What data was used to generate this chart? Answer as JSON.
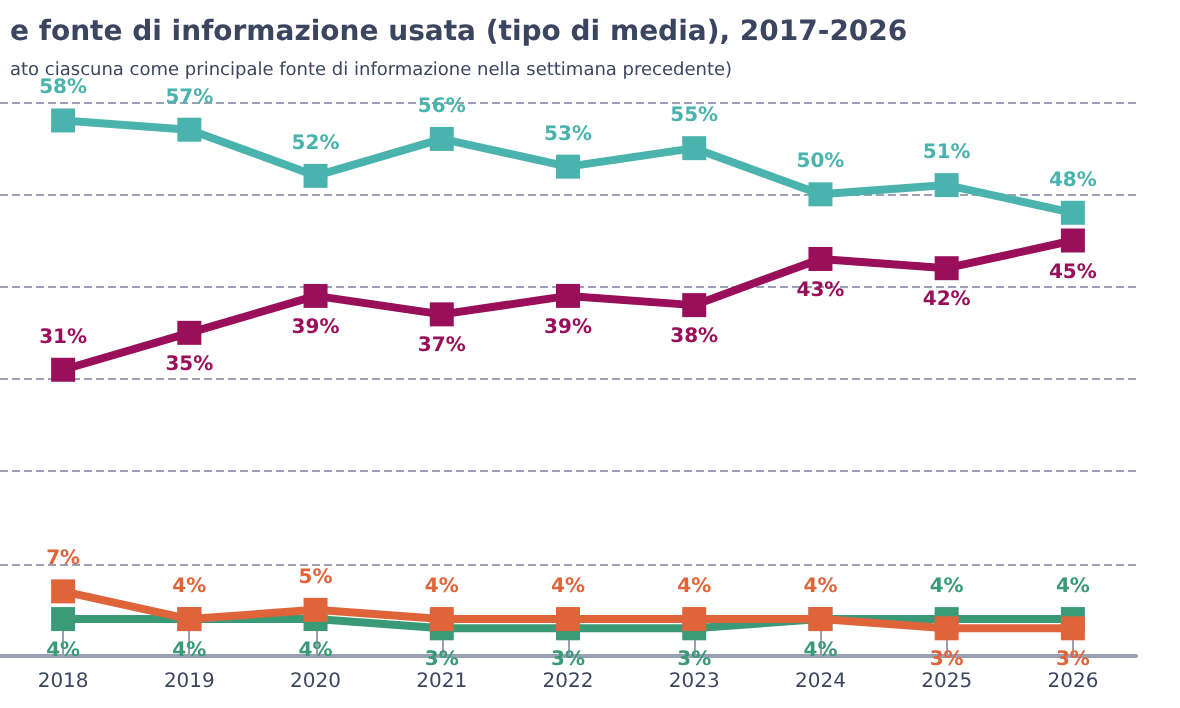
{
  "chart_data": {
    "type": "line",
    "title": "e fonte di informazione usata (tipo di media), 2017-2026",
    "subtitle": "ato ciascuna come principale fonte di informazione nella settimana precedente)",
    "categories": [
      "2018",
      "2019",
      "2020",
      "2021",
      "2022",
      "2023",
      "2024",
      "2025",
      "2026"
    ],
    "series": [
      {
        "color": "#4bb3ad",
        "values": [
          58,
          57,
          52,
          56,
          53,
          55,
          50,
          51,
          48
        ],
        "value_labels": [
          "58%",
          "57%",
          "52%",
          "56%",
          "53%",
          "55%",
          "50%",
          "51%",
          "48%"
        ]
      },
      {
        "color": "#990f5a",
        "values": [
          31,
          35,
          39,
          37,
          39,
          38,
          43,
          42,
          45
        ],
        "value_labels": [
          "31%",
          "35%",
          "39%",
          "37%",
          "39%",
          "38%",
          "43%",
          "42%",
          "45%"
        ]
      },
      {
        "color": "#e0643a",
        "values": [
          7,
          4,
          5,
          4,
          4,
          4,
          4,
          3,
          3
        ],
        "value_labels": [
          "7%",
          "4%",
          "5%",
          "4%",
          "4%",
          "4%",
          "4%",
          "3%",
          "3%"
        ]
      },
      {
        "color": "#3a9a78",
        "values": [
          4,
          4,
          4,
          3,
          3,
          3,
          4,
          4,
          4
        ],
        "value_labels": [
          "4%",
          "4%",
          "4%",
          "3%",
          "3%",
          "3%",
          "4%",
          "4%",
          "4%"
        ]
      }
    ],
    "tick_labels": "x",
    "grid": "y",
    "marker": "square",
    "line_style": "solid"
  }
}
